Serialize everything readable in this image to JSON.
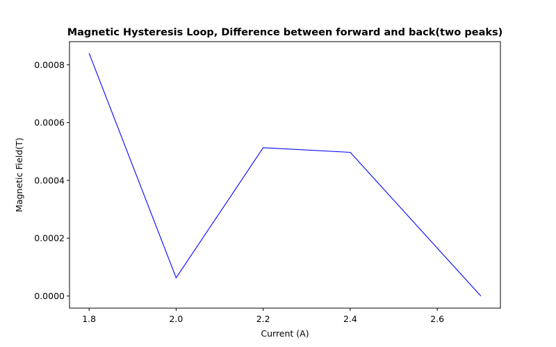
{
  "chart_data": {
    "type": "line",
    "title": "Magnetic Hysteresis Loop, Difference between forward and back(two peaks)",
    "xlabel": "Current (A)",
    "ylabel": "Magnetic Field(T)",
    "xlim": [
      1.755,
      2.745
    ],
    "ylim": [
      -4.2e-05,
      0.00088
    ],
    "xticks": [
      "1.8",
      "2.0",
      "2.2",
      "2.4",
      "2.6"
    ],
    "yticks": [
      "0.0000",
      "0.0002",
      "0.0004",
      "0.0006",
      "0.0008"
    ],
    "grid": false,
    "legend": "none",
    "series": [
      {
        "color": "#0000ff",
        "x": [
          1.8,
          2.0,
          2.2,
          2.4,
          2.7
        ],
        "y": [
          0.00084,
          6.3e-05,
          0.000513,
          0.000497,
          0.0
        ]
      }
    ]
  }
}
